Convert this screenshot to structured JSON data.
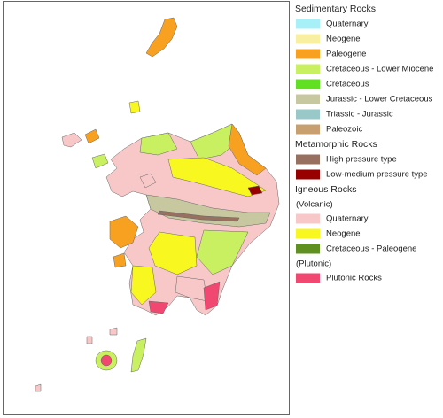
{
  "legend": [
    {
      "title": "Sedimentary Rocks",
      "items": [
        {
          "label": "Quaternary",
          "color": "#a8f0f8"
        },
        {
          "label": "Neogene",
          "color": "#f8f0a0"
        },
        {
          "label": "Paleogene",
          "color": "#f8a020"
        },
        {
          "label": "Cretaceous - Lower Miocene",
          "color": "#c8f060"
        },
        {
          "label": "Cretaceous",
          "color": "#60e020"
        },
        {
          "label": "Jurassic - Lower Cretaceous",
          "color": "#c8c8a0"
        },
        {
          "label": "Triassic - Jurassic",
          "color": "#98c8c8"
        },
        {
          "label": "Paleozoic",
          "color": "#c8a070"
        }
      ]
    },
    {
      "title": "Metamorphic Rocks",
      "items": [
        {
          "label": "High pressure type",
          "color": "#987060"
        },
        {
          "label": "Low-medium pressure type",
          "color": "#980000"
        }
      ]
    },
    {
      "title": "Igneous Rocks",
      "subsections": [
        {
          "title": "(Volcanic)",
          "items": [
            {
              "label": "Quaternary",
              "color": "#f8c8c8"
            },
            {
              "label": "Neogene",
              "color": "#f8f820"
            },
            {
              "label": "Cretaceous - Paleogene",
              "color": "#609020"
            }
          ]
        },
        {
          "title": "(Plutonic)",
          "items": [
            {
              "label": "Plutonic Rocks",
              "color": "#f04870"
            }
          ]
        }
      ]
    }
  ]
}
